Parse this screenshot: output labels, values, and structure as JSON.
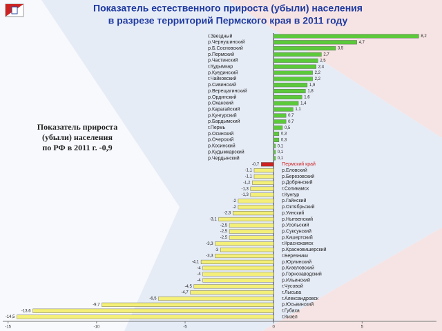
{
  "chart_data": {
    "type": "hbar",
    "title": "Показатель естественного прироста (убыли) населения",
    "subtitle": "в разрезе территорий Пермского края в 2011 году",
    "annotation": [
      "Показатель прироста",
      "(убыли) населения",
      "по РФ в 2011 г.   -0,9"
    ],
    "categories": [
      "г.Звездный",
      "р.Чернушинский",
      "р.Б.Сосновский",
      "р.Пермский",
      "р.Частинский",
      "г.Кудымкар",
      "р.Куединский",
      "г.Чайковский",
      "р.Сивинский",
      "р.Верещагинский",
      "р.Ординский",
      "р.Оханский",
      "р.Карагайский",
      "р.Кунгурский",
      "р.Бардымский",
      "г.Пермь",
      "р.Осинский",
      "р.Очерский",
      "р.Косинский",
      "р.Кудымкарский",
      "р.Чердынский",
      "Пермский край",
      "р.Еловский",
      "р.Березовский",
      "р.Добрянский",
      "г.Соликамск",
      "г.Кунгур",
      "р.Гайнский",
      "р.Октябрьский",
      "р.Уинский",
      "р.Нытвенский",
      "р.Усольский",
      "р.Суксунский",
      "р.Кишертский",
      "г.Краснокамск",
      "р.Красновишерский",
      "г.Березники",
      "р.Юрлинский",
      "р.Кизеловский",
      "р.Горнозаводский",
      "р.Ильинский",
      "г.Чусовой",
      "г.Лысьва",
      "г.Александровск",
      "р.Юсьвинский",
      "г.Губаха",
      "г.Кизел"
    ],
    "values": [
      8.2,
      4.7,
      3.5,
      2.7,
      2.5,
      2.4,
      2.2,
      2.2,
      1.9,
      1.8,
      1.6,
      1.4,
      1.1,
      0.7,
      0.7,
      0.5,
      0.3,
      0.3,
      0.1,
      0.1,
      0.1,
      -0.7,
      -1.1,
      -1.1,
      -1.2,
      -1.3,
      -1.3,
      -2,
      -2,
      -2.3,
      -3.1,
      -2.5,
      -2.5,
      -2.5,
      -3.3,
      -3,
      -3.3,
      -4.1,
      -4,
      -4,
      -4,
      -4.5,
      -4.7,
      -6.5,
      -9.7,
      -13.6,
      -14.5
    ],
    "value_labels": [
      "8,2",
      "4,7",
      "3,5",
      "2,7",
      "2,5",
      "2,4",
      "2,2",
      "2,2",
      "1,9",
      "1,8",
      "1,6",
      "1,4",
      "1,1",
      "0,7",
      "0,7",
      "0,5",
      "0,3",
      "0,3",
      "0,1",
      "0,1",
      "0,1",
      "-0,7",
      "-1,1",
      "-1,1",
      "-1,2",
      "-1,3",
      "-1,3",
      "-2",
      "-2",
      "-2,3",
      "-3,1",
      "-2,5",
      "-2,5",
      "-2,5",
      "-3,3",
      "-3",
      "-3,3",
      "-4,1",
      "-4",
      "-4",
      "-4",
      "-4,5",
      "-4,7",
      "-6,5",
      "-9,7",
      "-13,6",
      "-14,5"
    ],
    "colors": [
      "#5cc93b",
      "#5cc93b",
      "#5cc93b",
      "#5cc93b",
      "#5cc93b",
      "#5cc93b",
      "#5cc93b",
      "#5cc93b",
      "#5cc93b",
      "#5cc93b",
      "#5cc93b",
      "#5cc93b",
      "#5cc93b",
      "#5cc93b",
      "#5cc93b",
      "#5cc93b",
      "#5cc93b",
      "#5cc93b",
      "#5cc93b",
      "#5cc93b",
      "#5cc93b",
      "#cc2222",
      "#f3ef78",
      "#f3ef78",
      "#f3ef78",
      "#f3ef78",
      "#f3ef78",
      "#f3ef78",
      "#f3ef78",
      "#f3ef78",
      "#f3ef78",
      "#f3ef78",
      "#f3ef78",
      "#f3ef78",
      "#f3ef78",
      "#f3ef78",
      "#f3ef78",
      "#f3ef78",
      "#f3ef78",
      "#f3ef78",
      "#f3ef78",
      "#f3ef78",
      "#f3ef78",
      "#f3ef78",
      "#f3ef78",
      "#f3ef78",
      "#f3ef78"
    ],
    "highlight_label_color": "#cc2222",
    "xlim": [
      -15.3,
      9.2
    ],
    "xticks": [
      -15,
      -10,
      -5,
      0,
      5
    ]
  }
}
